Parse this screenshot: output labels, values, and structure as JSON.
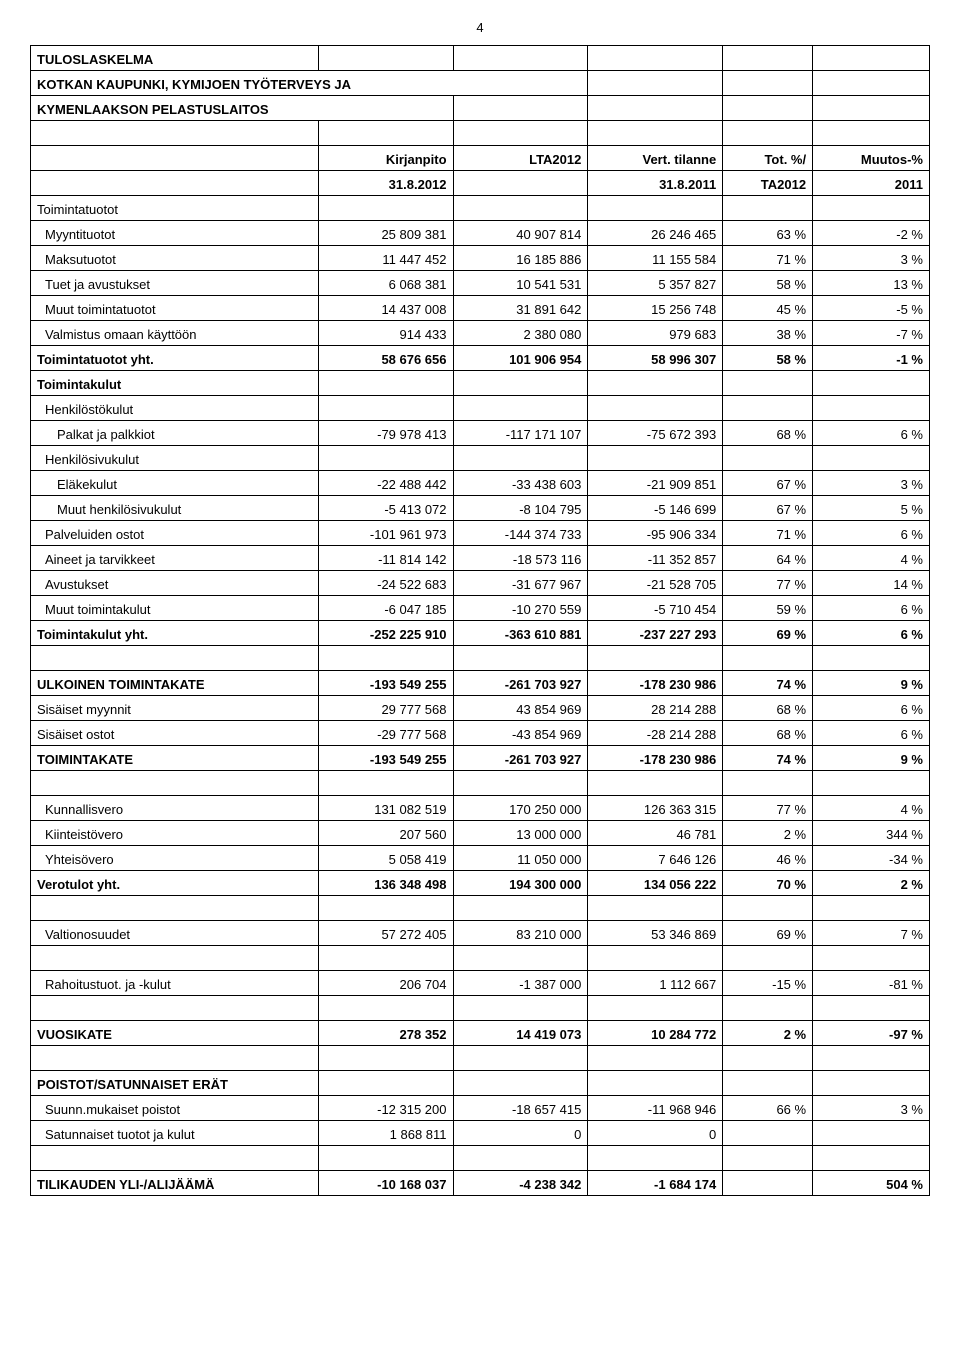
{
  "page_number": "4",
  "title1": "TULOSLASKELMA",
  "title2": "KOTKAN KAUPUNKI, KYMIJOEN TYÖTERVEYS JA",
  "title3": "KYMENLAAKSON PELASTUSLAITOS",
  "header": {
    "c1": "Kirjanpito",
    "c2": "LTA2012",
    "c3": "Vert. tilanne",
    "c4": "Tot. %/",
    "c5": "Muutos-%",
    "d1": "31.8.2012",
    "d3": "31.8.2011",
    "d4": "TA2012",
    "d5": "2011"
  },
  "rows": [
    {
      "label": "Toimintatuotot",
      "bold": false,
      "indent": 0,
      "blank": true
    },
    {
      "label": "Myyntituotot",
      "indent": 1,
      "c1": "25 809 381",
      "c2": "40 907 814",
      "c3": "26 246 465",
      "c4": "63 %",
      "c5": "-2 %"
    },
    {
      "label": "Maksutuotot",
      "indent": 1,
      "c1": "11 447 452",
      "c2": "16 185 886",
      "c3": "11 155 584",
      "c4": "71 %",
      "c5": "3 %"
    },
    {
      "label": "Tuet ja avustukset",
      "indent": 1,
      "c1": "6 068 381",
      "c2": "10 541 531",
      "c3": "5 357 827",
      "c4": "58 %",
      "c5": "13 %"
    },
    {
      "label": "Muut toimintatuotot",
      "indent": 1,
      "c1": "14 437 008",
      "c2": "31 891 642",
      "c3": "15 256 748",
      "c4": "45 %",
      "c5": "-5 %"
    },
    {
      "label": "Valmistus omaan käyttöön",
      "indent": 1,
      "c1": "914 433",
      "c2": "2 380 080",
      "c3": "979 683",
      "c4": "38 %",
      "c5": "-7 %"
    },
    {
      "label": "Toimintatuotot yht.",
      "bold": true,
      "indent": 0,
      "c1": "58 676 656",
      "c2": "101 906 954",
      "c3": "58 996 307",
      "c4": "58 %",
      "c5": "-1 %"
    },
    {
      "label": "Toimintakulut",
      "bold": true,
      "indent": 0,
      "blank": true
    },
    {
      "label": "Henkilöstökulut",
      "indent": 1,
      "blank": true
    },
    {
      "label": "Palkat ja palkkiot",
      "indent": 2,
      "c1": "-79 978 413",
      "c2": "-117 171 107",
      "c3": "-75 672 393",
      "c4": "68 %",
      "c5": "6 %"
    },
    {
      "label": "Henkilösivukulut",
      "indent": 1,
      "blank": true
    },
    {
      "label": "Eläkekulut",
      "indent": 2,
      "c1": "-22 488 442",
      "c2": "-33 438 603",
      "c3": "-21 909 851",
      "c4": "67 %",
      "c5": "3 %"
    },
    {
      "label": "Muut henkilösivukulut",
      "indent": 2,
      "c1": "-5 413 072",
      "c2": "-8 104 795",
      "c3": "-5 146 699",
      "c4": "67 %",
      "c5": "5 %"
    },
    {
      "label": "Palveluiden ostot",
      "indent": 1,
      "c1": "-101 961 973",
      "c2": "-144 374 733",
      "c3": "-95 906 334",
      "c4": "71 %",
      "c5": "6 %"
    },
    {
      "label": "Aineet ja tarvikkeet",
      "indent": 1,
      "c1": "-11 814 142",
      "c2": "-18 573 116",
      "c3": "-11 352 857",
      "c4": "64 %",
      "c5": "4 %"
    },
    {
      "label": "Avustukset",
      "indent": 1,
      "c1": "-24 522 683",
      "c2": "-31 677 967",
      "c3": "-21 528 705",
      "c4": "77 %",
      "c5": "14 %"
    },
    {
      "label": "Muut toimintakulut",
      "indent": 1,
      "c1": "-6 047 185",
      "c2": "-10 270 559",
      "c3": "-5 710 454",
      "c4": "59 %",
      "c5": "6 %"
    },
    {
      "label": "Toimintakulut yht.",
      "bold": true,
      "indent": 0,
      "c1": "-252 225 910",
      "c2": "-363 610 881",
      "c3": "-237 227 293",
      "c4": "69 %",
      "c5": "6 %"
    },
    {
      "spacer": true
    },
    {
      "label": "ULKOINEN TOIMINTAKATE",
      "bold": true,
      "indent": 0,
      "c1": "-193 549 255",
      "c2": "-261 703 927",
      "c3": "-178 230 986",
      "c4": "74 %",
      "c5": "9 %"
    },
    {
      "label": "Sisäiset myynnit",
      "indent": 0,
      "c1": "29 777 568",
      "c2": "43 854 969",
      "c3": "28 214 288",
      "c4": "68 %",
      "c5": "6 %"
    },
    {
      "label": "Sisäiset ostot",
      "indent": 0,
      "c1": "-29 777 568",
      "c2": "-43 854 969",
      "c3": "-28 214 288",
      "c4": "68 %",
      "c5": "6 %"
    },
    {
      "label": "TOIMINTAKATE",
      "bold": true,
      "indent": 0,
      "c1": "-193 549 255",
      "c2": "-261 703 927",
      "c3": "-178 230 986",
      "c4": "74 %",
      "c5": "9 %"
    },
    {
      "spacer": true
    },
    {
      "label": "Kunnallisvero",
      "indent": 1,
      "c1": "131 082 519",
      "c2": "170 250 000",
      "c3": "126 363 315",
      "c4": "77 %",
      "c5": "4 %"
    },
    {
      "label": "Kiinteistövero",
      "indent": 1,
      "c1": "207 560",
      "c2": "13 000 000",
      "c3": "46 781",
      "c4": "2 %",
      "c5": "344 %"
    },
    {
      "label": "Yhteisövero",
      "indent": 1,
      "c1": "5 058 419",
      "c2": "11 050 000",
      "c3": "7 646 126",
      "c4": "46 %",
      "c5": "-34 %"
    },
    {
      "label": "Verotulot yht.",
      "bold": true,
      "indent": 0,
      "c1": "136 348 498",
      "c2": "194 300 000",
      "c3": "134 056 222",
      "c4": "70 %",
      "c5": "2 %"
    },
    {
      "spacer": true
    },
    {
      "label": "Valtionosuudet",
      "indent": 1,
      "c1": "57 272 405",
      "c2": "83 210 000",
      "c3": "53 346 869",
      "c4": "69 %",
      "c5": "7 %"
    },
    {
      "spacer": true
    },
    {
      "label": "Rahoitustuot. ja -kulut",
      "indent": 1,
      "c1": "206 704",
      "c2": "-1 387 000",
      "c3": "1 112 667",
      "c4": "-15 %",
      "c5": "-81 %"
    },
    {
      "spacer": true
    },
    {
      "label": "VUOSIKATE",
      "bold": true,
      "indent": 0,
      "c1": "278 352",
      "c2": "14 419 073",
      "c3": "10 284 772",
      "c4": "2 %",
      "c5": "-97 %"
    },
    {
      "spacer": true
    },
    {
      "label": "POISTOT/SATUNNAISET ERÄT",
      "bold": true,
      "indent": 0,
      "blank": true
    },
    {
      "label": "Suunn.mukaiset poistot",
      "indent": 1,
      "c1": "-12 315 200",
      "c2": "-18 657 415",
      "c3": "-11 968 946",
      "c4": "66 %",
      "c5": "3 %"
    },
    {
      "label": "Satunnaiset tuotot ja kulut",
      "indent": 1,
      "c1": "1 868 811",
      "c2": "0",
      "c3": "0",
      "c4": "",
      "c5": ""
    },
    {
      "spacer": true
    },
    {
      "label": "TILIKAUDEN YLI-/ALIJÄÄMÄ",
      "bold": true,
      "indent": 0,
      "c1": "-10 168 037",
      "c2": "-4 238 342",
      "c3": "-1 684 174",
      "c4": "",
      "c5": "504 %"
    }
  ]
}
